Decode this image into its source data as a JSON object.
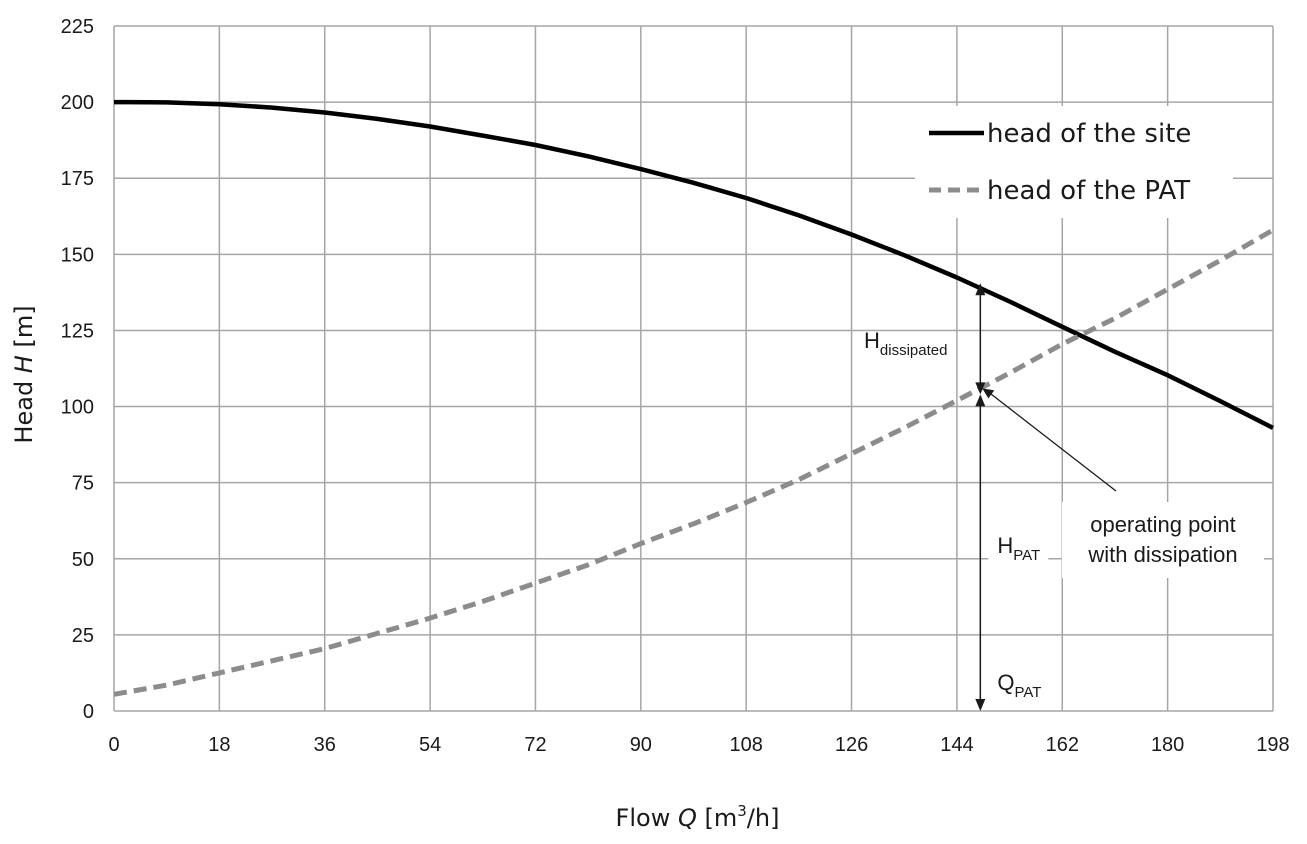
{
  "chart_data": {
    "type": "line",
    "xlabel": {
      "prefix": "Flow ",
      "var": "Q",
      "unit_open": " [m",
      "sup": "3",
      "unit_close": "/h]"
    },
    "ylabel": {
      "prefix": "Head ",
      "var": "H",
      "unit": " [m]"
    },
    "xlim": [
      0,
      198
    ],
    "ylim": [
      0,
      225
    ],
    "x_ticks": [
      "0",
      "18",
      "36",
      "54",
      "72",
      "90",
      "108",
      "126",
      "144",
      "162",
      "180",
      "198"
    ],
    "y_ticks": [
      "0",
      "25",
      "50",
      "75",
      "100",
      "125",
      "150",
      "175",
      "200",
      "225"
    ],
    "grid": true,
    "legend_position": "top-right",
    "series": [
      {
        "name": "head of the site",
        "style": "solid",
        "color": "#000000",
        "x": [
          0,
          9,
          18,
          27,
          36,
          45,
          54,
          63,
          72,
          81,
          90,
          99,
          108,
          117,
          126,
          135,
          144,
          153,
          162,
          171,
          180,
          189,
          198
        ],
        "y": [
          200,
          199.9,
          199.3,
          198.2,
          196.6,
          194.5,
          192,
          189,
          185.9,
          182.2,
          178,
          173.5,
          168.5,
          162.8,
          156.5,
          149.7,
          142.4,
          134.5,
          126.2,
          118,
          110.3,
          101.8,
          93
        ]
      },
      {
        "name": "head of the PAT",
        "style": "dashed",
        "color": "#8c8c8c",
        "x": [
          0,
          9,
          18,
          27,
          36,
          45,
          54,
          63,
          72,
          81,
          90,
          99,
          108,
          117,
          126,
          135,
          144,
          153,
          162,
          171,
          180,
          189,
          198
        ],
        "y": [
          5.5,
          8.5,
          12.5,
          16.5,
          20.5,
          25.5,
          30.5,
          36,
          42,
          48,
          55,
          61.5,
          68.5,
          76,
          84.5,
          93,
          102,
          111,
          120.5,
          129,
          138.5,
          148,
          158
        ]
      }
    ],
    "annotations": {
      "h_dissipated": {
        "main": "H",
        "sub": "dissipated",
        "x": 148,
        "y_top": 140.5,
        "y_bottom": 104
      },
      "h_pat": {
        "main": "H",
        "sub": "PAT",
        "x": 148,
        "y_top": 104,
        "y_bottom": 0
      },
      "q_pat": {
        "main": "Q",
        "sub": "PAT"
      },
      "operating_point": {
        "lines": [
          "operating point",
          "with dissipation"
        ],
        "x": 148,
        "y": 104
      }
    }
  }
}
